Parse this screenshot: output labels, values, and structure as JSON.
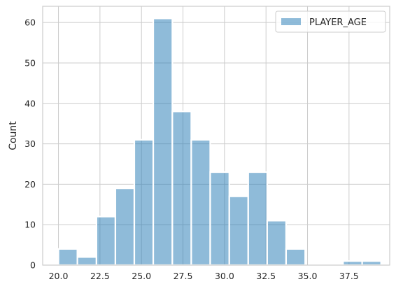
{
  "chart_data": {
    "type": "bar",
    "subtype": "histogram",
    "title": "",
    "xlabel": "",
    "ylabel": "Count",
    "xlim": [
      19.05,
      39.95
    ],
    "ylim": [
      0,
      64
    ],
    "grid": true,
    "legend": {
      "position": "upper-right",
      "entries": [
        "PLAYER_AGE"
      ]
    },
    "bar_color": "#1f77b4",
    "bar_opacity": 0.5,
    "x_ticks": [
      20.0,
      22.5,
      25.0,
      27.5,
      30.0,
      32.5,
      35.0,
      37.5
    ],
    "x_tick_labels": [
      "20.0",
      "22.5",
      "25.0",
      "27.5",
      "30.0",
      "32.5",
      "35.0",
      "37.5"
    ],
    "y_ticks": [
      0,
      10,
      20,
      30,
      40,
      50,
      60
    ],
    "y_tick_labels": [
      "0",
      "10",
      "20",
      "30",
      "40",
      "50",
      "60"
    ],
    "series": [
      {
        "name": "PLAYER_AGE",
        "bins": [
          {
            "x0": 20.0,
            "x1": 21.14,
            "count": 4
          },
          {
            "x0": 21.14,
            "x1": 22.29,
            "count": 2
          },
          {
            "x0": 22.29,
            "x1": 23.43,
            "count": 12
          },
          {
            "x0": 23.43,
            "x1": 24.57,
            "count": 19
          },
          {
            "x0": 24.57,
            "x1": 25.71,
            "count": 31
          },
          {
            "x0": 25.71,
            "x1": 26.86,
            "count": 61
          },
          {
            "x0": 26.86,
            "x1": 28.0,
            "count": 38
          },
          {
            "x0": 28.0,
            "x1": 29.14,
            "count": 31
          },
          {
            "x0": 29.14,
            "x1": 30.29,
            "count": 23
          },
          {
            "x0": 30.29,
            "x1": 31.43,
            "count": 17
          },
          {
            "x0": 31.43,
            "x1": 32.57,
            "count": 23
          },
          {
            "x0": 32.57,
            "x1": 33.71,
            "count": 11
          },
          {
            "x0": 33.71,
            "x1": 34.86,
            "count": 4
          },
          {
            "x0": 34.86,
            "x1": 36.0,
            "count": 0
          },
          {
            "x0": 36.0,
            "x1": 37.14,
            "count": 0
          },
          {
            "x0": 37.14,
            "x1": 38.29,
            "count": 1
          },
          {
            "x0": 38.29,
            "x1": 39.43,
            "count": 1
          }
        ]
      }
    ]
  }
}
